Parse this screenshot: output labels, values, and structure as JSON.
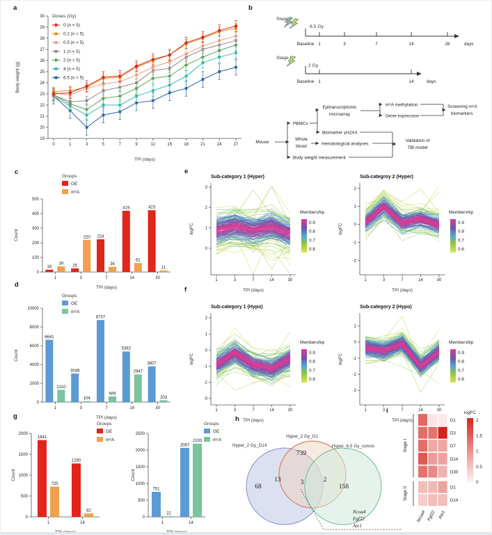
{
  "panels": {
    "a": {
      "label": "a",
      "chart_data": {
        "type": "line",
        "xlabel": "TPI (days)",
        "ylabel": "Body weight (g)",
        "legend_title": "Doses (Gy)",
        "categories": [
          "0",
          "1",
          "3",
          "5",
          "7",
          "9",
          "12",
          "15",
          "18",
          "21",
          "24",
          "27"
        ],
        "ylim": [
          19,
          30
        ],
        "ytick_step": 1,
        "series": [
          {
            "name": "0 (n = 5)",
            "color": "#d7281e",
            "marker": "diamond",
            "err": 0.5,
            "values": [
              23.0,
              23.1,
              23.7,
              24.5,
              24.6,
              25.5,
              26.1,
              26.5,
              27.6,
              28.1,
              28.7,
              29.1
            ]
          },
          {
            "name": "0.2 (n = 5)",
            "color": "#e8911f",
            "marker": "square",
            "err": 0.4,
            "values": [
              23.2,
              23.3,
              23.6,
              24.4,
              24.5,
              25.4,
              26.0,
              26.5,
              27.5,
              28.0,
              28.6,
              28.9
            ]
          },
          {
            "name": "0.5 (n = 5)",
            "color": "#ec9b80",
            "marker": "square",
            "err": 0.4,
            "values": [
              23.1,
              22.9,
              23.5,
              23.9,
              24.1,
              24.7,
              25.4,
              25.9,
              26.6,
              27.3,
              27.8,
              28.2
            ]
          },
          {
            "name": "1 (n = 5)",
            "color": "#8a8a8a",
            "marker": "square",
            "err": 0.4,
            "values": [
              22.9,
              22.3,
              22.4,
              23.3,
              23.6,
              24.0,
              25.1,
              25.3,
              26.3,
              27.0,
              27.4,
              27.8
            ]
          },
          {
            "name": "2 (n = 5)",
            "color": "#58a85b",
            "marker": "diamond",
            "err": 0.5,
            "values": [
              22.9,
              22.1,
              21.6,
              22.6,
              22.8,
              23.5,
              24.4,
              24.6,
              25.6,
              26.3,
              26.9,
              27.4
            ]
          },
          {
            "name": "4 (n = 5)",
            "color": "#38b8af",
            "marker": "square",
            "err": 0.5,
            "values": [
              22.8,
              21.9,
              21.1,
              22.0,
              22.0,
              22.8,
              23.3,
              23.8,
              24.6,
              25.8,
              26.3,
              26.7
            ]
          },
          {
            "name": "6.5 (n = 5)",
            "color": "#2f63a8",
            "marker": "square",
            "err": 0.7,
            "values": [
              22.8,
              21.5,
              20.0,
              21.1,
              21.4,
              22.2,
              22.4,
              23.1,
              23.5,
              24.3,
              25.0,
              25.4
            ]
          }
        ]
      }
    },
    "b": {
      "label": "b",
      "stage1": {
        "name": "Stage I",
        "dose": "6.5 Gy",
        "ticks": [
          "Baseline",
          "1",
          "3",
          "7",
          "14",
          "28"
        ],
        "unit": "days"
      },
      "stage2": {
        "name": "Stage II",
        "dose": "2 Gy",
        "ticks": [
          "Baseline",
          "1",
          "14"
        ],
        "unit": "days"
      },
      "flowchart": {
        "mouse": "Mouse",
        "pbmcs": "PBMCs",
        "whole_l1": "Whole",
        "whole_l2": "blood",
        "body": "Body weight measurement",
        "epi_l1": "Epitranscriptomic",
        "epi_l2": "microarray",
        "biomarker": "Biomarker γH2AX",
        "hema": "Hematological analyses",
        "m6a": "m⁶A methylation",
        "gene": "Gene expression",
        "screen_l1": "Screening m⁶A",
        "screen_l2": "biomarkers",
        "valid_l1": "Validation of",
        "valid_l2": "TBI model"
      }
    },
    "c": {
      "label": "c",
      "chart_data": {
        "type": "bar",
        "xlabel": "TPI (days)",
        "ylabel": "Count",
        "legend_title": "Groups",
        "categories": [
          "1",
          "3",
          "7",
          "14",
          "30"
        ],
        "ylim": [
          0,
          500
        ],
        "yticks": [
          0,
          100,
          200,
          300,
          400,
          500
        ],
        "series": [
          {
            "name": "GE",
            "color": "#e1251b",
            "values": [
              16,
              25,
              224,
              419,
              423
            ]
          },
          {
            "name": "m⁶A",
            "color": "#f0a04e",
            "values": [
              39,
              220,
              36,
              61,
              11
            ]
          }
        ]
      }
    },
    "d": {
      "label": "d",
      "chart_data": {
        "type": "bar",
        "xlabel": "TPI (days)",
        "ylabel": "Count",
        "legend_title": "Groups",
        "categories": [
          "1",
          "3",
          "7",
          "14",
          "30"
        ],
        "ylim": [
          0,
          10000
        ],
        "yticks": [
          0,
          2000,
          4000,
          6000,
          8000,
          10000
        ],
        "series": [
          {
            "name": "GE",
            "color": "#5b9bd5",
            "values": [
              6641,
              3049,
              8737,
              5392,
              3807
            ]
          },
          {
            "name": "m⁶A",
            "color": "#79c49e",
            "values": [
              1310,
              104,
              609,
              2947,
              203
            ]
          }
        ]
      }
    },
    "e1": {
      "label": "e",
      "chart_data": {
        "type": "cluster",
        "title": "Sub-category 1 (Hyper)",
        "xlabel": "TPI (days)",
        "ylabel": "logFC",
        "categories": [
          "1",
          "3",
          "7",
          "14",
          "30"
        ],
        "ylim": [
          -1.3,
          3.2
        ],
        "yticks": [
          0,
          1,
          2,
          3
        ],
        "center": [
          0.85,
          1.1,
          0.85,
          1.05,
          0.7
        ],
        "spread": 1.05,
        "n_lines": 175,
        "seed": 7,
        "legend_title": "Membership",
        "legend_ticks": [
          "0.9",
          "0.8",
          "0.7",
          "0.6"
        ]
      }
    },
    "e2": {
      "chart_data": {
        "type": "cluster",
        "title": "Sub-categroy 2 (Hyper)",
        "xlabel": "TPI (days)",
        "ylabel": "logFC",
        "categories": [
          "1",
          "3",
          "7",
          "14",
          "30"
        ],
        "ylim": [
          -2.8,
          2.3
        ],
        "yticks": [
          -2,
          -1,
          0,
          1,
          2
        ],
        "center": [
          0.1,
          1.0,
          0.05,
          0.3,
          -0.05
        ],
        "spread": 0.85,
        "n_lines": 175,
        "seed": 13,
        "legend_title": "Membership",
        "legend_ticks": [
          "0.9",
          "0.8",
          "0.7",
          "0.6"
        ]
      }
    },
    "f1": {
      "label": "f",
      "chart_data": {
        "type": "cluster",
        "title": "Sub-category 1 (Hypo)",
        "xlabel": "TPI (days)",
        "ylabel": "logFC",
        "categories": [
          "1",
          "3",
          "7",
          "14",
          "30"
        ],
        "ylim": [
          -3.4,
          2.3
        ],
        "yticks": [
          -3,
          -2,
          -1,
          0,
          1,
          2
        ],
        "center": [
          -0.9,
          -0.15,
          -0.9,
          -1.15,
          -0.5
        ],
        "spread": 1.0,
        "n_lines": 180,
        "seed": 23,
        "legend_title": "Membership",
        "legend_ticks": [
          "0.9",
          "0.8",
          "0.7",
          "0.6"
        ]
      }
    },
    "f2": {
      "chart_data": {
        "type": "cluster",
        "title": "Sub-category 2 (Hypo)",
        "xlabel": "TPI (days)",
        "ylabel": "logFC",
        "categories": [
          "1",
          "3",
          "7",
          "14",
          "30"
        ],
        "ylim": [
          -3.9,
          1.8
        ],
        "yticks": [
          -3,
          -2,
          -1,
          0,
          1
        ],
        "center": [
          -0.35,
          -0.55,
          -0.1,
          -1.5,
          -0.6
        ],
        "spread": 0.85,
        "n_lines": 180,
        "seed": 37,
        "legend_title": "Membership",
        "legend_ticks": [
          "0.9",
          "0.8",
          "0.7",
          "0.6"
        ]
      }
    },
    "g1": {
      "label": "g",
      "chart_data": {
        "type": "bar",
        "xlabel": "TPI (days)",
        "ylabel": "Count",
        "legend_title": "Groups",
        "categories": [
          "1",
          "14"
        ],
        "ylim": [
          0,
          2000
        ],
        "yticks": [
          0,
          500,
          1000,
          1500,
          2000
        ],
        "series": [
          {
            "name": "GE",
            "color": "#e1251b",
            "values": [
              1841,
              1280
            ]
          },
          {
            "name": "m⁶A",
            "color": "#f0a04e",
            "values": [
              725,
              82
            ]
          }
        ]
      }
    },
    "g2": {
      "chart_data": {
        "type": "bar",
        "xlabel": "TPI (days)",
        "ylabel": "Count",
        "legend_title": "Groups",
        "categories": [
          "1",
          "14"
        ],
        "ylim": [
          0,
          2500
        ],
        "yticks": [
          0,
          500,
          1000,
          1500,
          2000,
          2500
        ],
        "series": [
          {
            "name": "GE",
            "color": "#5b9bd5",
            "values": [
              751,
              2067
            ]
          },
          {
            "name": "m⁶A",
            "color": "#79c49e",
            "values": [
              22,
              2193
            ]
          }
        ]
      }
    },
    "h": {
      "label": "h",
      "venn": {
        "set1": "Hyper_2 Gy_D14",
        "set2": "Hyper_2 Gy_D1",
        "set3": "Hyper_6.5 Gy_consis",
        "n1": "68",
        "n12": "13",
        "n2": "739",
        "n123": "3",
        "n23": "2",
        "n3": "158",
        "genes": [
          "Ncoa4",
          "Fgf22",
          "Ate1"
        ]
      }
    },
    "i": {
      "label": "i",
      "chart_data": {
        "type": "heatmap",
        "legend_title": "logFC",
        "vmax": 2,
        "legend_ticks": [
          "2",
          "1.5",
          "1",
          "0.5",
          "0"
        ],
        "columns": [
          "Ncoa4",
          "Fgf22",
          "Ate1"
        ],
        "row_groups": [
          {
            "label": "Stage I",
            "rows": [
              "D1",
              "D3",
              "D7",
              "D14",
              "D30"
            ]
          },
          {
            "label": "Stage II",
            "rows": [
              "D1",
              "D14"
            ]
          }
        ],
        "values": [
          [
            1.3,
            0.12,
            0.08
          ],
          [
            1.25,
            1.2,
            1.95
          ],
          [
            1.25,
            0.7,
            0.72
          ],
          [
            1.45,
            0.8,
            0.75
          ],
          [
            1.2,
            1.0,
            0.6
          ],
          [
            0.5,
            0.55,
            0.75
          ],
          [
            0.35,
            0.5,
            0.5
          ]
        ]
      }
    }
  }
}
